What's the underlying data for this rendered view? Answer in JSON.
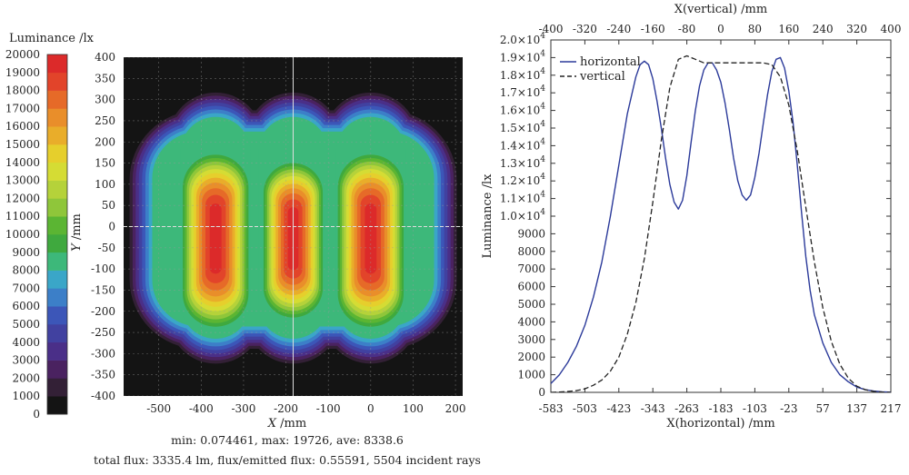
{
  "chart_data": [
    {
      "type": "heatmap",
      "colorbar": {
        "title": "Luminance /lx",
        "levels": [
          0,
          1000,
          2000,
          3000,
          4000,
          5000,
          6000,
          7000,
          8000,
          9000,
          10000,
          11000,
          12000,
          13000,
          14000,
          15000,
          16000,
          17000,
          18000,
          19000,
          20000
        ],
        "colors": [
          "#141414",
          "#332036",
          "#4a2260",
          "#4a2f88",
          "#4141a0",
          "#3c56b8",
          "#3c7fc8",
          "#3aa6c8",
          "#3db87a",
          "#3fa93e",
          "#5bb533",
          "#8fc63a",
          "#b5d23a",
          "#d5dc34",
          "#e6cf2c",
          "#e9ad2a",
          "#e98e2a",
          "#e66a28",
          "#e2442a",
          "#dc2a2a"
        ]
      },
      "xlabel": "X",
      "xunit": "/mm",
      "ylabel": "Y",
      "yunit": "/mm",
      "xticks": [
        -500,
        -400,
        -300,
        -200,
        -100,
        0,
        100,
        200
      ],
      "yticks": [
        400,
        350,
        300,
        250,
        200,
        150,
        100,
        50,
        0,
        -50,
        -100,
        -150,
        -200,
        -250,
        -300,
        -350,
        -400
      ],
      "xlim": [
        -583,
        217
      ],
      "ylim": [
        -400,
        400
      ],
      "hotspot_centers_x": [
        -366,
        -183,
        0
      ],
      "peak_luminance": 19726,
      "crosshair": {
        "x": -183,
        "y": 0
      },
      "stats_line1": "min: 0.074461, max: 19726, ave: 8338.6",
      "stats_line2": "total flux: 3335.4 lm, flux/emitted flux: 0.55591, 5504 incident rays"
    },
    {
      "type": "line",
      "xlabel_bottom": "X(horizontal) /mm",
      "xlabel_top": "X(vertical) /mm",
      "ylabel": "Luminance /lx",
      "xticks_bottom": [
        -583,
        -503,
        -423,
        -343,
        -263,
        -183,
        -103,
        -23,
        57,
        137,
        217
      ],
      "xticks_top": [
        -400,
        -320,
        -240,
        -160,
        -80,
        0,
        80,
        160,
        240,
        320,
        400
      ],
      "xlim_bottom": [
        -583,
        217
      ],
      "xlim_top": [
        -400,
        400
      ],
      "ylim": [
        0,
        20000
      ],
      "yticks_plain": [
        0,
        1000,
        2000,
        3000,
        4000,
        5000,
        6000,
        7000,
        8000,
        9000
      ],
      "yticks_sci": [
        {
          "value": 10000,
          "mant": "1.0×10",
          "exp": "4"
        },
        {
          "value": 11000,
          "mant": "1.1×10",
          "exp": "4"
        },
        {
          "value": 12000,
          "mant": "1.2×10",
          "exp": "4"
        },
        {
          "value": 13000,
          "mant": "1.3×10",
          "exp": "4"
        },
        {
          "value": 14000,
          "mant": "1.4×10",
          "exp": "4"
        },
        {
          "value": 15000,
          "mant": "1.5×10",
          "exp": "4"
        },
        {
          "value": 16000,
          "mant": "1.6×10",
          "exp": "4"
        },
        {
          "value": 17000,
          "mant": "1.7×10",
          "exp": "4"
        },
        {
          "value": 18000,
          "mant": "1.8×10",
          "exp": "4"
        },
        {
          "value": 19000,
          "mant": "1.9×10",
          "exp": "4"
        },
        {
          "value": 20000,
          "mant": "2.0×10",
          "exp": "4"
        }
      ],
      "legend_position": "top-left",
      "series": [
        {
          "name": "horizontal",
          "color": "#2b3a9a",
          "axis": "bottom",
          "x": [
            -583,
            -563,
            -543,
            -523,
            -503,
            -483,
            -463,
            -443,
            -423,
            -403,
            -383,
            -373,
            -363,
            -353,
            -343,
            -333,
            -323,
            -313,
            -303,
            -293,
            -283,
            -273,
            -263,
            -253,
            -243,
            -233,
            -223,
            -213,
            -203,
            -193,
            -183,
            -173,
            -163,
            -153,
            -143,
            -133,
            -123,
            -113,
            -103,
            -93,
            -83,
            -73,
            -63,
            -53,
            -43,
            -33,
            -23,
            -13,
            -3,
            7,
            17,
            27,
            37,
            57,
            77,
            97,
            117,
            137,
            157,
            177,
            197,
            217
          ],
          "y": [
            500,
            1000,
            1700,
            2600,
            3800,
            5400,
            7400,
            10000,
            12900,
            15800,
            17900,
            18600,
            18800,
            18600,
            17800,
            16500,
            15000,
            13300,
            11800,
            10800,
            10400,
            10900,
            12300,
            14200,
            16000,
            17400,
            18300,
            18700,
            18700,
            18300,
            17600,
            16400,
            14900,
            13300,
            12000,
            11200,
            10900,
            11200,
            12200,
            13600,
            15300,
            16900,
            18200,
            18900,
            19000,
            18400,
            17100,
            15300,
            12900,
            10200,
            7700,
            5800,
            4400,
            2800,
            1700,
            1000,
            600,
            300,
            150,
            70,
            30,
            10
          ]
        },
        {
          "name": "vertical",
          "color": "#222222",
          "axis": "top",
          "x": [
            -400,
            -380,
            -360,
            -340,
            -320,
            -300,
            -280,
            -260,
            -240,
            -220,
            -200,
            -180,
            -160,
            -140,
            -120,
            -100,
            -80,
            -60,
            -40,
            -20,
            0,
            20,
            40,
            60,
            80,
            100,
            120,
            140,
            160,
            180,
            200,
            220,
            240,
            260,
            280,
            300,
            320,
            340,
            360,
            380,
            400
          ],
          "y": [
            0,
            20,
            50,
            100,
            200,
            400,
            700,
            1200,
            2000,
            3300,
            5100,
            7600,
            10800,
            14300,
            17300,
            18900,
            19100,
            18900,
            18700,
            18700,
            18700,
            18700,
            18700,
            18700,
            18700,
            18700,
            18600,
            17900,
            16300,
            13700,
            10500,
            7400,
            4800,
            2900,
            1600,
            800,
            350,
            150,
            50,
            15,
            0
          ]
        }
      ]
    }
  ]
}
